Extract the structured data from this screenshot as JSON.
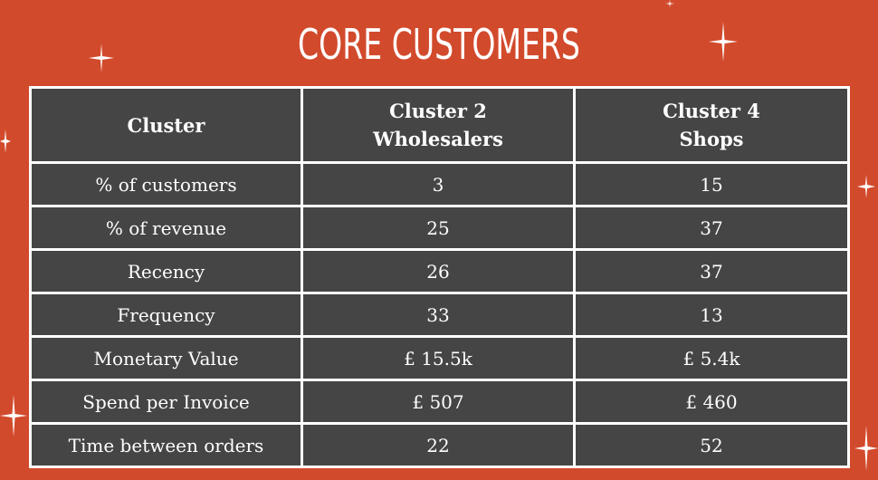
{
  "title": "CORE CUSTOMERS",
  "colors": {
    "background": "#d24a2c",
    "cell": "#454545",
    "border": "#ffffff",
    "text": "#ffffff"
  },
  "table": {
    "headers": [
      "Cluster",
      [
        "Cluster 2",
        "Wholesalers"
      ],
      [
        "Cluster 4",
        "Shops"
      ]
    ],
    "rows": [
      [
        "% of customers",
        "3",
        "15"
      ],
      [
        "% of revenue",
        "25",
        "37"
      ],
      [
        "Recency",
        "26",
        "37"
      ],
      [
        "Frequency",
        "33",
        "13"
      ],
      [
        "Monetary Value",
        "£ 15.5k",
        "£ 5.4k"
      ],
      [
        "Spend per Invoice",
        "£ 507",
        "£ 460"
      ],
      [
        "Time between orders",
        "22",
        "52"
      ]
    ]
  },
  "decorations": {
    "icon": "sparkle-icon"
  }
}
